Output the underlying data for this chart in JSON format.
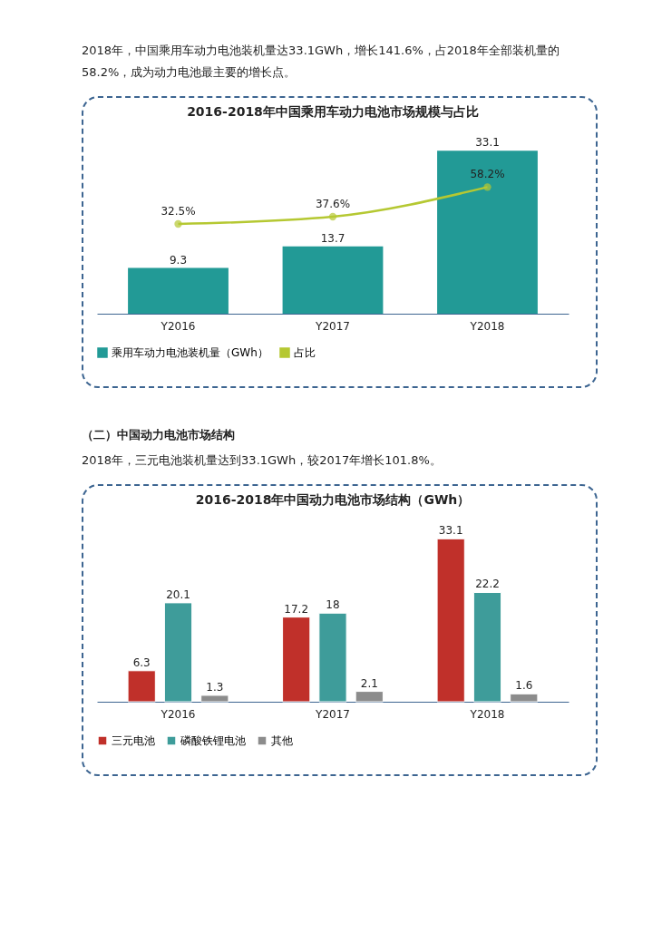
{
  "chart_data": [
    {
      "type": "bar",
      "title": "2016-2018年中国乘用车动力电池市场规模与占比",
      "annotations": [
        "2018年，中国乘用车动力电池装机量达33.1GWh，增长141.6%，占2018年全部装机量的58.2%，成为动力电池最主要的增长点。"
      ],
      "categories": [
        "Y2016",
        "Y2017",
        "Y2018"
      ],
      "legend": "bottom",
      "marker": "circle",
      "series": [
        {
          "name": "乘用车动力电池装机量（GWh）",
          "color": "#229a96",
          "values": [
            9.3,
            13.7,
            33.1
          ],
          "value_labels": [
            "9.3",
            "13.7",
            "33.1"
          ]
        },
        {
          "name": "占比",
          "type": "line",
          "axis": "y2",
          "color": "#b5c832",
          "values": [
            32.5,
            37.6,
            58.2
          ],
          "value_labels": [
            "32.5%",
            "37.6%",
            "58.2%"
          ]
        }
      ]
    },
    {
      "type": "bar",
      "title": "2016-2018年中国动力电池市场结构（GWh）",
      "annotations": [
        "（二）中国动力电池市场结构",
        "2018年，三元电池装机量达到33.1GWh，较2017年增长101.8%。"
      ],
      "categories": [
        "Y2016",
        "Y2017",
        "Y2018"
      ],
      "legend": "bottom",
      "data_labels": true,
      "series": [
        {
          "name": "三元电池",
          "color": "#c0302a",
          "values": [
            6.3,
            17.2,
            33.1
          ]
        },
        {
          "name": "磷酸铁锂电池",
          "color": "#3e9c9a",
          "values": [
            20.1,
            18,
            22.2
          ]
        },
        {
          "name": "其他",
          "color": "#8c8c8c",
          "values": [
            1.3,
            2.1,
            1.6
          ]
        }
      ]
    }
  ]
}
